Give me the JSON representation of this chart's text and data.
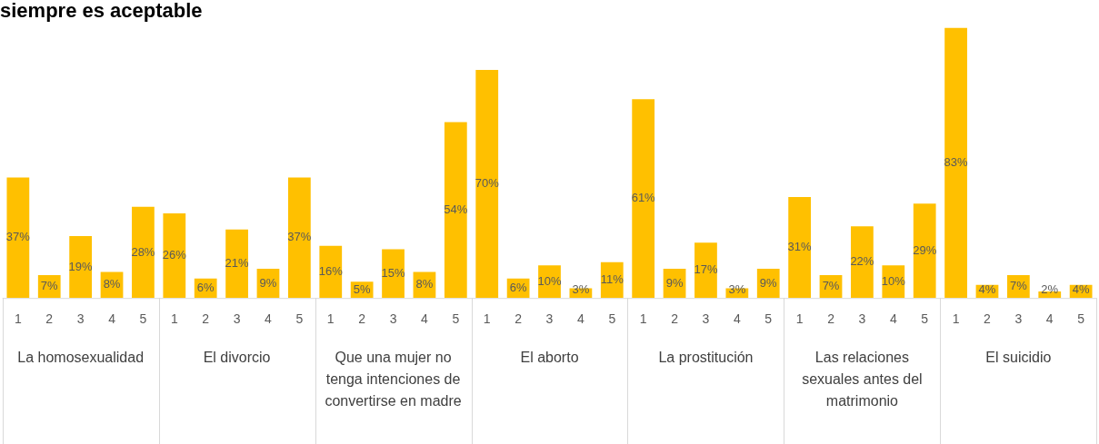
{
  "chart_data": {
    "type": "bar",
    "title": "siempre es aceptable",
    "categories": [
      "1",
      "2",
      "3",
      "4",
      "5",
      "1",
      "2",
      "3",
      "4",
      "5",
      "1",
      "2",
      "3",
      "4",
      "5",
      "1",
      "2",
      "3",
      "4",
      "5",
      "1",
      "2",
      "3",
      "4",
      "5",
      "1",
      "2",
      "3",
      "4",
      "5",
      "1",
      "2",
      "3",
      "4",
      "5"
    ],
    "values": [
      37,
      7,
      19,
      8,
      28,
      26,
      6,
      21,
      9,
      37,
      16,
      5,
      15,
      8,
      54,
      70,
      6,
      10,
      3,
      11,
      61,
      9,
      17,
      3,
      9,
      31,
      7,
      22,
      10,
      29,
      83,
      4,
      7,
      2,
      4
    ],
    "value_labels": [
      "37%",
      "7%",
      "19%",
      "8%",
      "28%",
      "26%",
      "6%",
      "21%",
      "9%",
      "37%",
      "16%",
      "5%",
      "15%",
      "8%",
      "54%",
      "70%",
      "6%",
      "10%",
      "3%",
      "11%",
      "61%",
      "9%",
      "17%",
      "3%",
      "9%",
      "31%",
      "7%",
      "22%",
      "10%",
      "29%",
      "83%",
      "4%",
      "7%",
      "2%",
      "4%"
    ],
    "color": "#ffc000",
    "annotations": [
      "La homosexualidad",
      "El divorcio",
      "Que una mujer no tenga intenciones de convertirse en madre",
      "El aborto",
      "La prostitución",
      "Las relaciones sexuales antes del matrimonio",
      "El suicidio"
    ],
    "tick_labels": "x",
    "grid": false,
    "legend": false
  }
}
